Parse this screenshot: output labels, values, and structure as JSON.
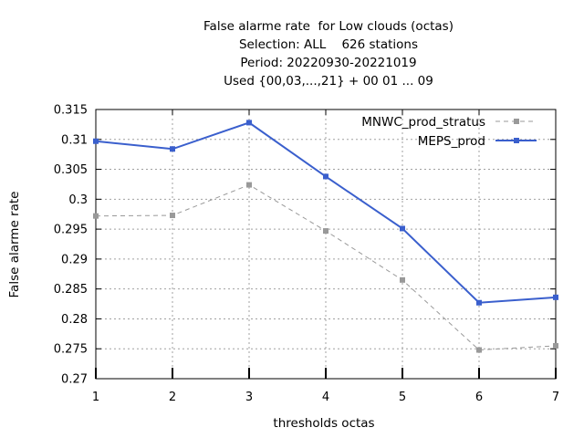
{
  "chart_data": {
    "type": "line",
    "title_lines": [
      "False alarme rate  for Low clouds (octas)",
      "Selection: ALL    626 stations",
      "Period: 20220930-20221019",
      "Used {00,03,...,21} + 00 01 ... 09"
    ],
    "xlabel": "thresholds octas",
    "ylabel": "False alarme rate",
    "x": [
      1,
      2,
      3,
      4,
      5,
      6,
      7
    ],
    "xlim": [
      1,
      7
    ],
    "ylim": [
      0.27,
      0.315
    ],
    "yticks": [
      "0.27",
      "0.275",
      "0.28",
      "0.285",
      "0.29",
      "0.295",
      "0.3",
      "0.305",
      "0.31",
      "0.315"
    ],
    "xticks": [
      "1",
      "2",
      "3",
      "4",
      "5",
      "6",
      "7"
    ],
    "grid": true,
    "legend_position": "top-right",
    "series": [
      {
        "name": "MNWC_prod_stratus",
        "color": "#999999",
        "dashed": true,
        "values": [
          0.2972,
          0.2973,
          0.3024,
          0.2947,
          0.2865,
          0.2748,
          0.2755
        ]
      },
      {
        "name": "MEPS_prod",
        "color": "#3a5fcd",
        "dashed": false,
        "values": [
          0.3097,
          0.3084,
          0.3128,
          0.3038,
          0.2951,
          0.2827,
          0.2836
        ]
      }
    ]
  }
}
